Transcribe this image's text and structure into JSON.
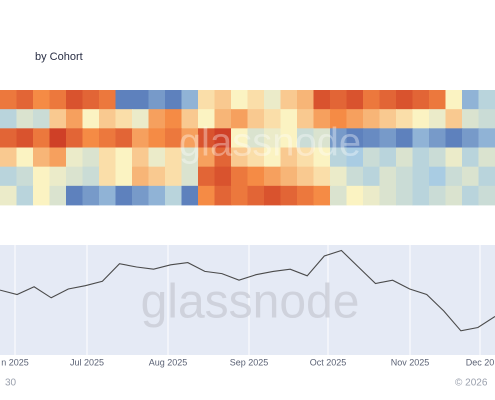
{
  "title": "by Cohort",
  "watermark": "glassnode",
  "footer": {
    "left": "30",
    "right": "© 2026"
  },
  "chart_data": [
    {
      "type": "heatmap",
      "zlim": [
        0,
        1
      ],
      "colors": [
        "#2c4fa3",
        "#a9cce3",
        "#fbf3c2",
        "#f58b45",
        "#c62d1f"
      ],
      "values": [
        [
          0.8,
          0.85,
          0.75,
          0.8,
          0.9,
          0.85,
          0.8,
          0.1,
          0.1,
          0.15,
          0.1,
          0.2,
          0.55,
          0.6,
          0.5,
          0.55,
          0.45,
          0.6,
          0.65,
          0.9,
          0.85,
          0.9,
          0.8,
          0.85,
          0.9,
          0.85,
          0.8,
          0.5,
          0.2,
          0.3
        ],
        [
          0.3,
          0.4,
          0.35,
          0.6,
          0.7,
          0.5,
          0.6,
          0.55,
          0.45,
          0.7,
          0.75,
          0.6,
          0.5,
          0.65,
          0.7,
          0.6,
          0.55,
          0.5,
          0.6,
          0.7,
          0.75,
          0.7,
          0.65,
          0.6,
          0.55,
          0.5,
          0.45,
          0.6,
          0.4,
          0.35
        ],
        [
          0.85,
          0.9,
          0.8,
          0.95,
          0.85,
          0.75,
          0.8,
          0.85,
          0.7,
          0.75,
          0.8,
          0.7,
          0.9,
          0.95,
          0.5,
          0.4,
          0.45,
          0.5,
          0.35,
          0.4,
          0.15,
          0.1,
          0.12,
          0.15,
          0.1,
          0.2,
          0.15,
          0.1,
          0.15,
          0.2
        ],
        [
          0.6,
          0.5,
          0.65,
          0.7,
          0.45,
          0.4,
          0.55,
          0.5,
          0.6,
          0.45,
          0.55,
          0.4,
          0.7,
          0.85,
          0.6,
          0.55,
          0.5,
          0.6,
          0.55,
          0.5,
          0.3,
          0.25,
          0.35,
          0.3,
          0.4,
          0.3,
          0.35,
          0.45,
          0.3,
          0.4
        ],
        [
          0.3,
          0.35,
          0.5,
          0.45,
          0.4,
          0.35,
          0.55,
          0.5,
          0.65,
          0.6,
          0.55,
          0.4,
          0.85,
          0.9,
          0.8,
          0.75,
          0.7,
          0.65,
          0.6,
          0.55,
          0.45,
          0.35,
          0.3,
          0.4,
          0.35,
          0.3,
          0.25,
          0.35,
          0.4,
          0.3
        ],
        [
          0.45,
          0.3,
          0.5,
          0.4,
          0.1,
          0.15,
          0.2,
          0.1,
          0.15,
          0.2,
          0.3,
          0.1,
          0.75,
          0.85,
          0.8,
          0.85,
          0.9,
          0.85,
          0.8,
          0.75,
          0.4,
          0.5,
          0.45,
          0.4,
          0.35,
          0.3,
          0.35,
          0.4,
          0.3,
          0.35
        ]
      ]
    },
    {
      "type": "line",
      "color": "#4a4a4a",
      "ylim": [
        0,
        100
      ],
      "xtick_labels": [
        "n 2025",
        "Jul 2025",
        "Aug 2025",
        "Sep 2025",
        "Oct 2025",
        "Nov 2025",
        "Dec 20"
      ],
      "values": [
        59,
        55,
        62,
        52,
        60,
        63,
        67,
        83,
        80,
        78,
        82,
        84,
        76,
        74,
        68,
        73,
        76,
        78,
        72,
        90,
        95,
        80,
        65,
        68,
        60,
        55,
        40,
        22,
        25,
        35
      ]
    }
  ]
}
